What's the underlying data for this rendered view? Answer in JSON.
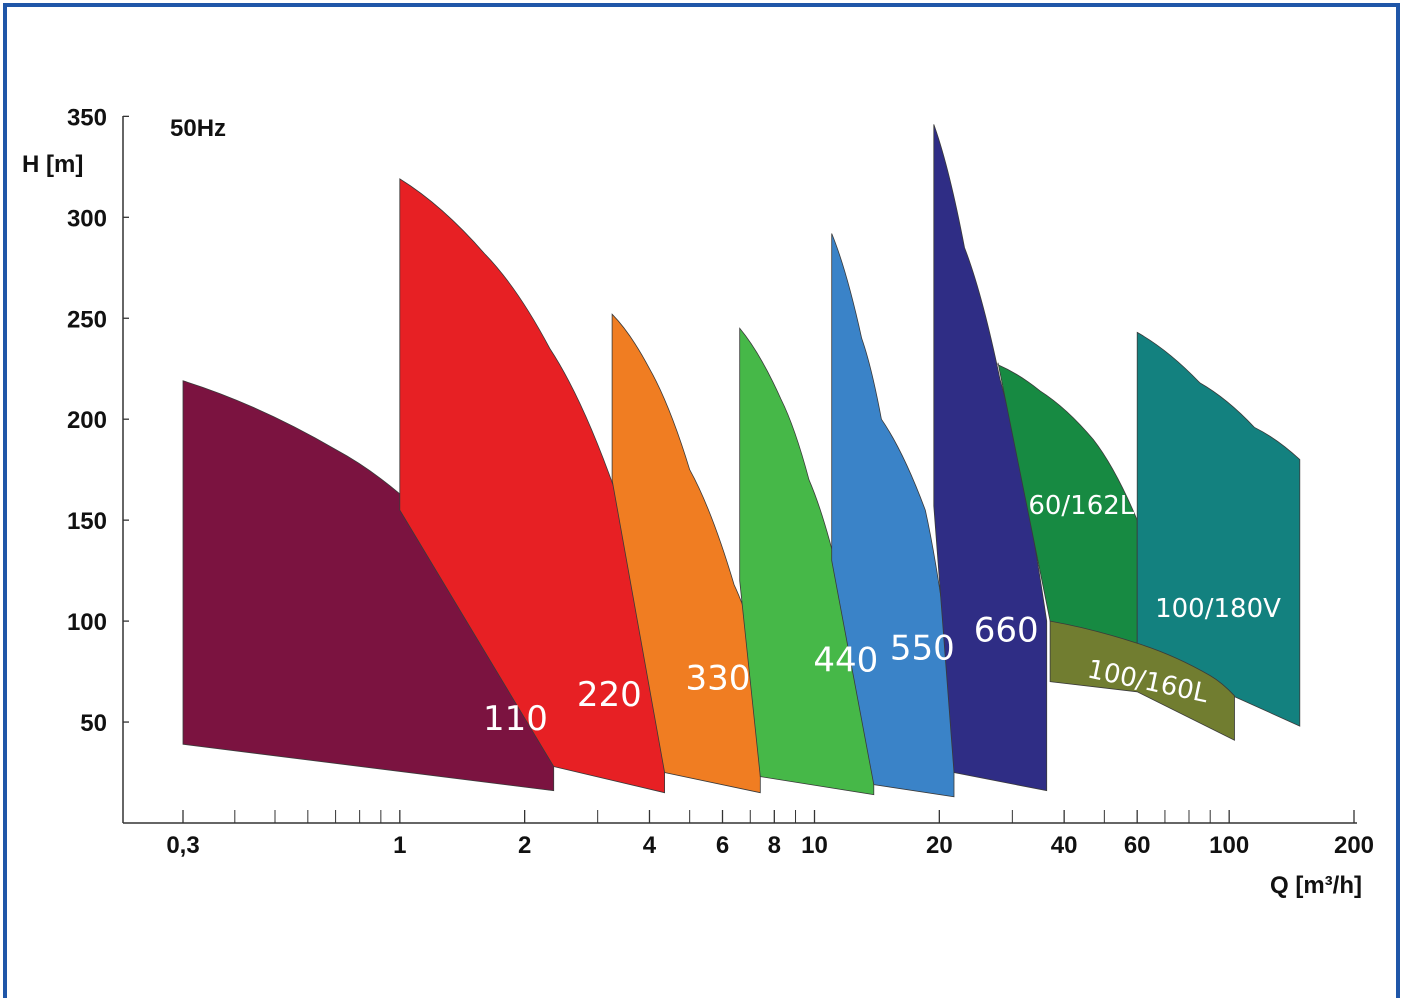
{
  "frame_color": "#1f56a8",
  "chart_data": {
    "type": "area",
    "note": "50Hz",
    "xlabel": "Q [m³/h]",
    "ylabel": "H [m]",
    "x_scale": "log",
    "xlim": [
      0.25,
      200
    ],
    "ylim": [
      0,
      350
    ],
    "x_tick_labels": [
      {
        "value": 0.3,
        "label": "0,3"
      },
      {
        "value": 1,
        "label": "1"
      },
      {
        "value": 2,
        "label": "2"
      },
      {
        "value": 4,
        "label": "4"
      },
      {
        "value": 6,
        "label": "6"
      },
      {
        "value": 8,
        "label": "8"
      },
      {
        "value": 10,
        "label": "10"
      },
      {
        "value": 20,
        "label": "20"
      },
      {
        "value": 40,
        "label": "40"
      },
      {
        "value": 60,
        "label": "60"
      },
      {
        "value": 100,
        "label": "100"
      },
      {
        "value": 200,
        "label": "200"
      }
    ],
    "x_minor_ticks": [
      0.4,
      0.5,
      0.6,
      0.7,
      0.8,
      0.9,
      3,
      5,
      7,
      9,
      30,
      50,
      70,
      80,
      90
    ],
    "y_ticks": [
      {
        "value": 50,
        "label": "50"
      },
      {
        "value": 100,
        "label": "100"
      },
      {
        "value": 150,
        "label": "150"
      },
      {
        "value": 200,
        "label": "200"
      },
      {
        "value": 250,
        "label": "250"
      },
      {
        "value": 300,
        "label": "300"
      },
      {
        "value": 350,
        "label": "350"
      }
    ],
    "series": [
      {
        "name": "110",
        "color": "#7b1340",
        "top": [
          [
            0.3,
            219
          ],
          [
            0.7,
            185
          ],
          [
            1.2,
            148
          ],
          [
            1.8,
            115
          ],
          [
            2.35,
            88
          ]
        ],
        "bottom": [
          [
            0.3,
            39
          ],
          [
            2.35,
            16
          ]
        ],
        "label_at": [
          1.9,
          46
        ]
      },
      {
        "name": "220",
        "color": "#e72024",
        "top": [
          [
            1,
            319
          ],
          [
            1.6,
            282
          ],
          [
            2.3,
            235
          ],
          [
            3.3,
            165
          ],
          [
            4.35,
            89
          ]
        ],
        "bottom": [
          [
            1,
            155
          ],
          [
            2.35,
            28
          ],
          [
            4.35,
            15
          ]
        ],
        "label_at": [
          3.2,
          58
        ]
      },
      {
        "name": "330",
        "color": "#f07d22",
        "top": [
          [
            3.25,
            252
          ],
          [
            4,
            225
          ],
          [
            5,
            175
          ],
          [
            6.4,
            118
          ],
          [
            7.4,
            79
          ]
        ],
        "bottom": [
          [
            3.25,
            170
          ],
          [
            4.35,
            25
          ],
          [
            7.4,
            15
          ]
        ],
        "label_at": [
          5.85,
          66
        ]
      },
      {
        "name": "440",
        "color": "#46b848",
        "top": [
          [
            6.6,
            245
          ],
          [
            8.3,
            210
          ],
          [
            9.7,
            170
          ],
          [
            11.5,
            120
          ],
          [
            13.9,
            53
          ]
        ],
        "bottom": [
          [
            6.6,
            120
          ],
          [
            7.4,
            23
          ],
          [
            13.9,
            14
          ]
        ],
        "label_at": [
          11.9,
          75
        ]
      },
      {
        "name": "550",
        "color": "#3a83c8",
        "top": [
          [
            11,
            292
          ],
          [
            13,
            240
          ],
          [
            14.5,
            200
          ],
          [
            18.5,
            155
          ],
          [
            21.7,
            63
          ]
        ],
        "bottom": [
          [
            11,
            130
          ],
          [
            13.9,
            19
          ],
          [
            21.7,
            13
          ]
        ],
        "label_at": [
          18.2,
          81
        ]
      },
      {
        "name": "660",
        "color": "#2f2d85",
        "top": [
          [
            19.4,
            346
          ],
          [
            23,
            285
          ],
          [
            28,
            220
          ],
          [
            36.3,
            100
          ]
        ],
        "bottom": [
          [
            19.4,
            157
          ],
          [
            21.7,
            25
          ],
          [
            36.3,
            16
          ]
        ],
        "label_at": [
          29,
          90
        ]
      },
      {
        "name": "60/162L",
        "color": "#178a42",
        "top": [
          [
            27.7,
            227
          ],
          [
            35,
            214
          ],
          [
            47,
            190
          ],
          [
            60,
            150
          ]
        ],
        "bottom": [
          [
            27.7,
            228
          ],
          [
            37,
            100
          ],
          [
            60,
            88
          ]
        ],
        "label_at": [
          44,
          153
        ]
      },
      {
        "name": "100/180V",
        "color": "#13817f",
        "top": [
          [
            60,
            243
          ],
          [
            85,
            218
          ],
          [
            115,
            196
          ],
          [
            148,
            180
          ]
        ],
        "bottom": [
          [
            60,
            85
          ],
          [
            90,
            68
          ],
          [
            148,
            48
          ]
        ],
        "label_at": [
          94,
          102
        ]
      },
      {
        "name": "100/160L",
        "color": "#717d30",
        "top": [
          [
            37,
            100
          ],
          [
            60,
            89
          ],
          [
            90,
            73
          ],
          [
            103,
            63
          ]
        ],
        "bottom": [
          [
            37,
            70
          ],
          [
            60,
            65
          ],
          [
            103,
            41
          ]
        ],
        "label_at": [
          63,
          66
        ]
      }
    ]
  }
}
